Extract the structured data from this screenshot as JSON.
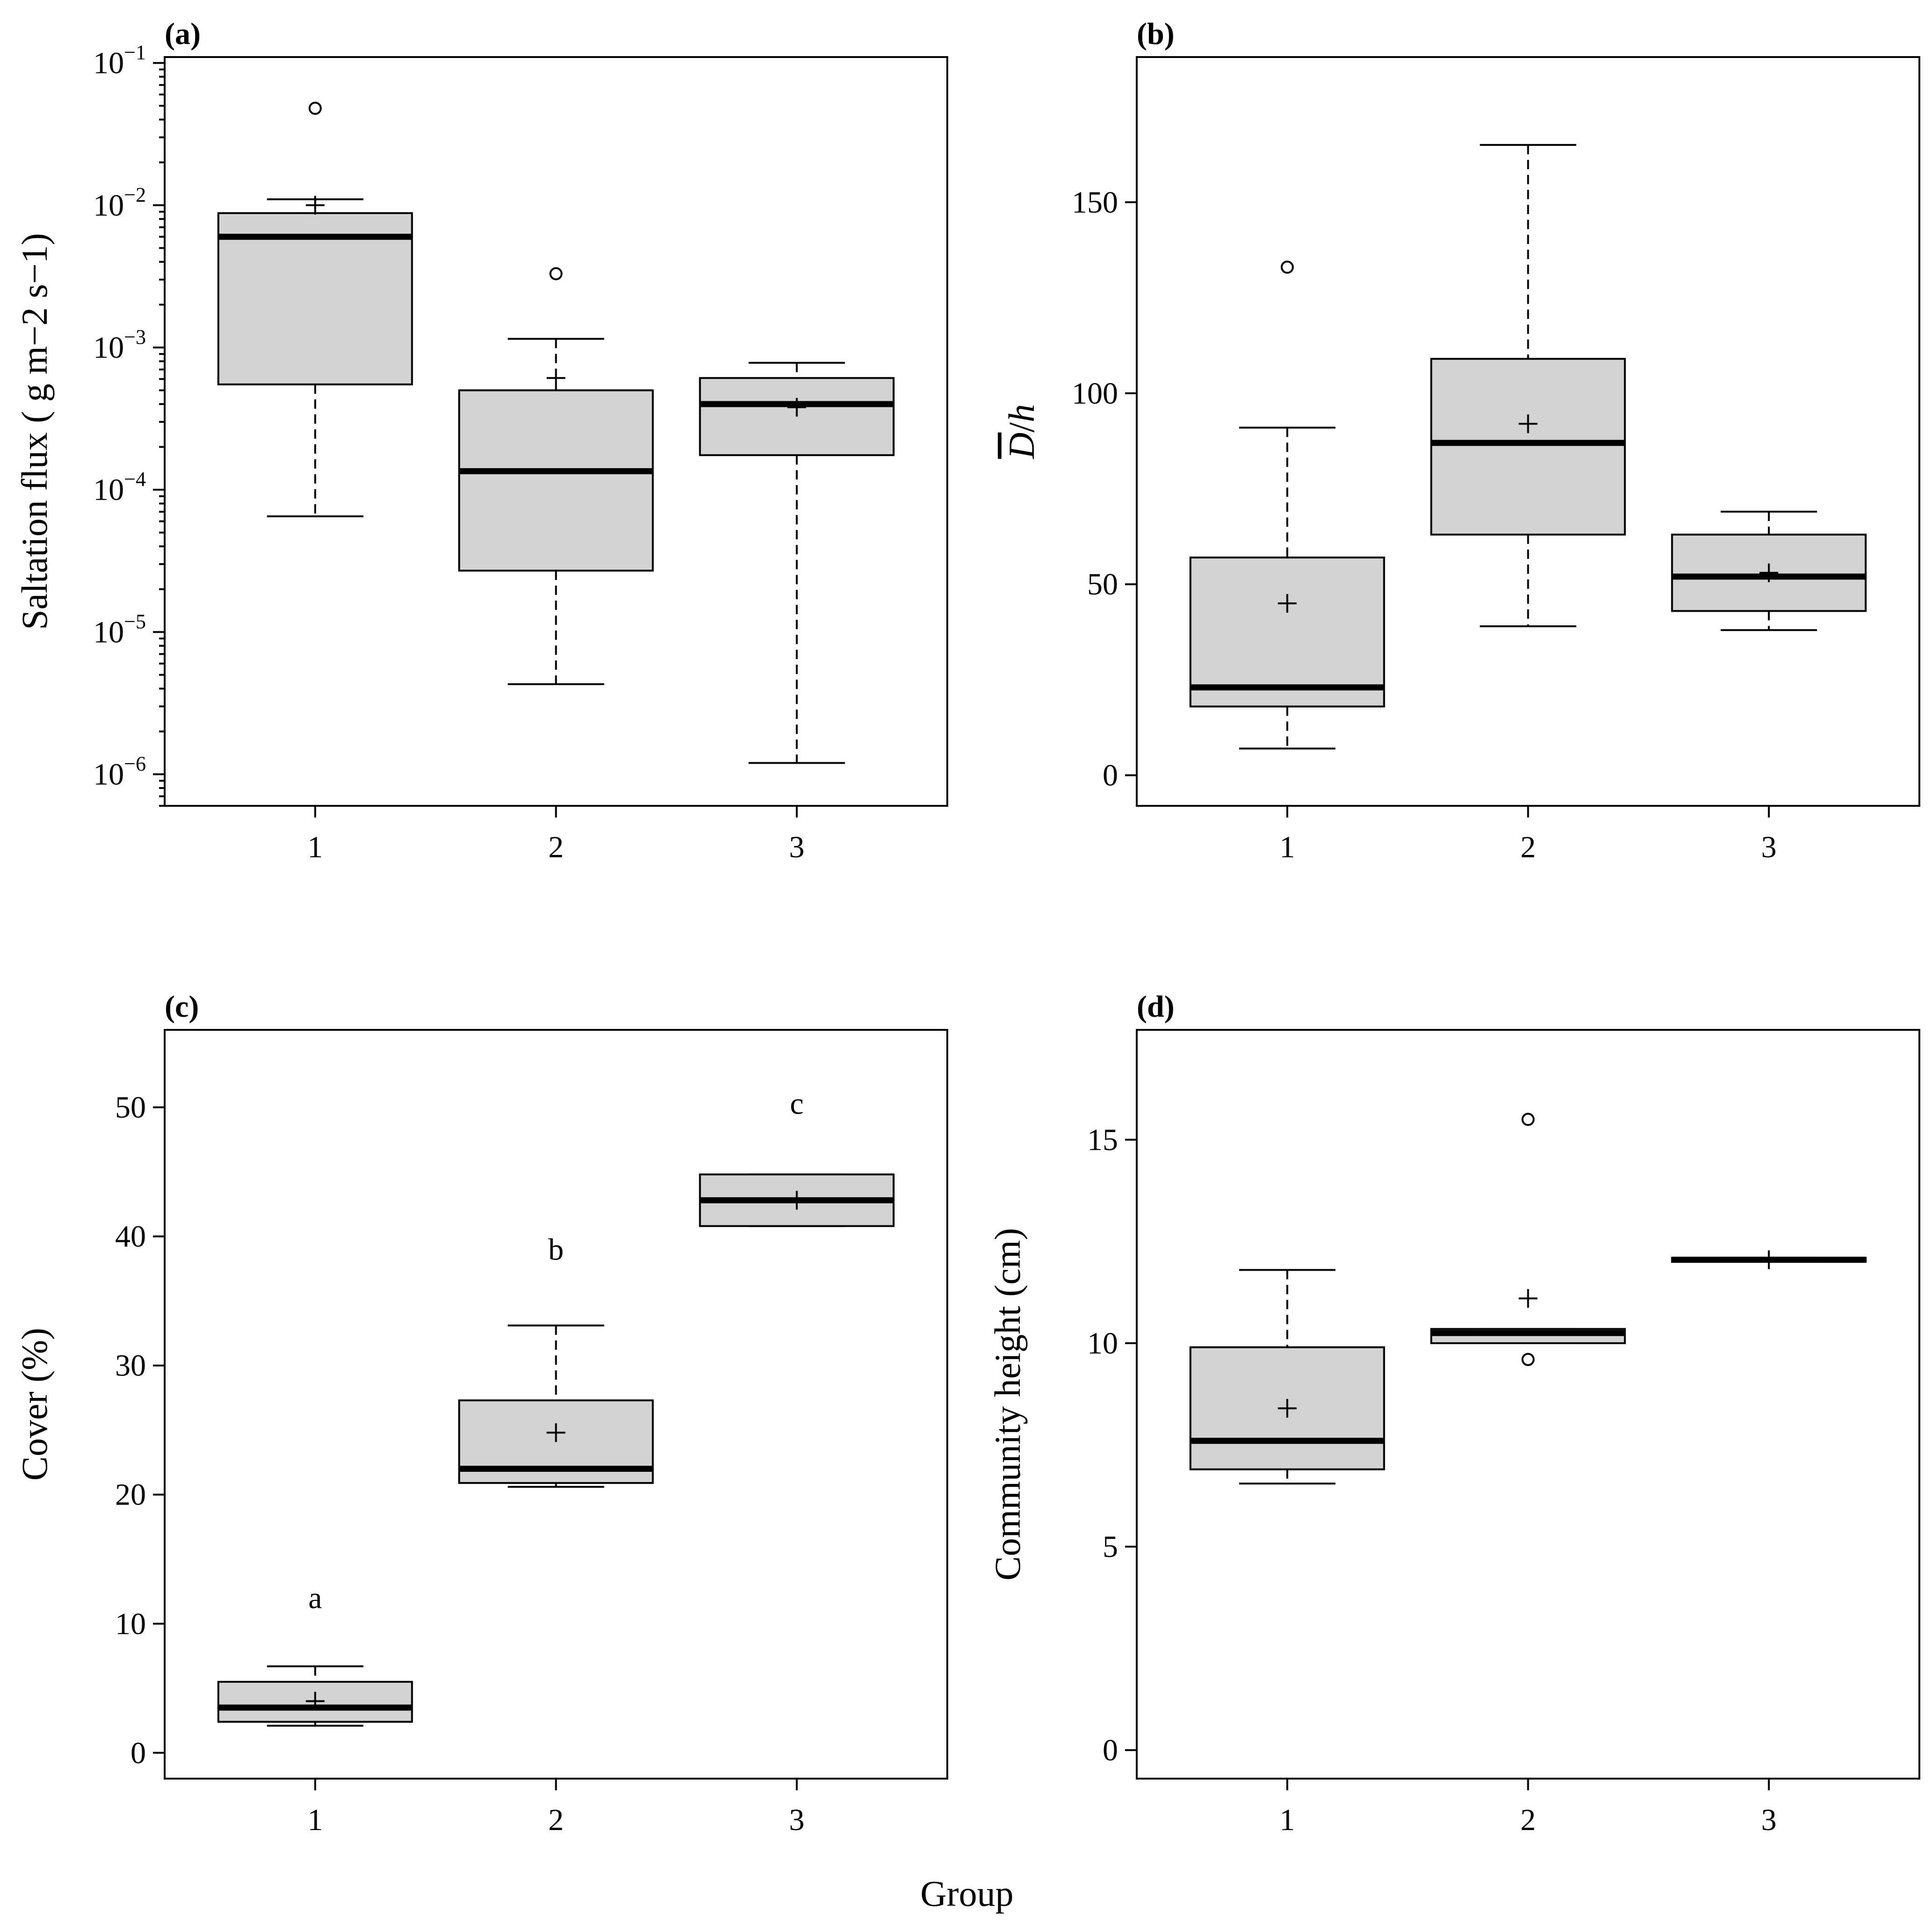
{
  "figure": {
    "x_common_label": "Group"
  },
  "chart_data": [
    {
      "panel": "(a)",
      "type": "box",
      "ylabel": "Saltation flux ( g m−2 s−1)",
      "yscale": "log",
      "ylim": [
        6e-07,
        0.11
      ],
      "categories": [
        "1",
        "2",
        "3"
      ],
      "ytick_labels": [
        {
          "value": 1e-06,
          "base": "10",
          "exp": "−6"
        },
        {
          "value": 1e-05,
          "base": "10",
          "exp": "−5"
        },
        {
          "value": 0.0001,
          "base": "10",
          "exp": "−4"
        },
        {
          "value": 0.001,
          "base": "10",
          "exp": "−3"
        },
        {
          "value": 0.01,
          "base": "10",
          "exp": "−2"
        },
        {
          "value": 0.1,
          "base": "10",
          "exp": "−1"
        }
      ],
      "boxes": [
        {
          "group": "1",
          "whisker_low": 6.5e-05,
          "q1": 0.00055,
          "median": 0.006,
          "q3": 0.0088,
          "whisker_high": 0.011,
          "mean": 0.01,
          "outliers": [
            0.048
          ]
        },
        {
          "group": "2",
          "whisker_low": 4.3e-06,
          "q1": 2.7e-05,
          "median": 0.000135,
          "q3": 0.0005,
          "whisker_high": 0.00115,
          "mean": 0.00061,
          "outliers": [
            0.0033
          ]
        },
        {
          "group": "3",
          "whisker_low": 1.2e-06,
          "q1": 0.000175,
          "median": 0.0004,
          "q3": 0.00061,
          "whisker_high": 0.00078,
          "mean": 0.00038,
          "outliers": []
        }
      ],
      "annotations": []
    },
    {
      "panel": "(b)",
      "type": "box",
      "ylabel": "D/h",
      "ylabel_parts": {
        "overbar_italic": "D",
        "slash": "/",
        "italic": "h"
      },
      "yscale": "linear",
      "ylim": [
        -8,
        188
      ],
      "categories": [
        "1",
        "2",
        "3"
      ],
      "ytick_labels": [
        {
          "value": 0,
          "label": "0"
        },
        {
          "value": 50,
          "label": "50"
        },
        {
          "value": 100,
          "label": "100"
        },
        {
          "value": 150,
          "label": "150"
        }
      ],
      "boxes": [
        {
          "group": "1",
          "whisker_low": 7,
          "q1": 18,
          "median": 23,
          "q3": 57,
          "whisker_high": 91,
          "mean": 45,
          "outliers": [
            133
          ]
        },
        {
          "group": "2",
          "whisker_low": 39,
          "q1": 63,
          "median": 87,
          "q3": 109,
          "whisker_high": 165,
          "mean": 92,
          "outliers": []
        },
        {
          "group": "3",
          "whisker_low": 38,
          "q1": 43,
          "median": 52,
          "q3": 63,
          "whisker_high": 69,
          "mean": 53,
          "outliers": []
        }
      ],
      "annotations": []
    },
    {
      "panel": "(c)",
      "type": "box",
      "ylabel": "Cover (%)",
      "yscale": "linear",
      "ylim": [
        -2,
        56
      ],
      "categories": [
        "1",
        "2",
        "3"
      ],
      "ytick_labels": [
        {
          "value": 0,
          "label": "0"
        },
        {
          "value": 10,
          "label": "10"
        },
        {
          "value": 20,
          "label": "20"
        },
        {
          "value": 30,
          "label": "30"
        },
        {
          "value": 40,
          "label": "40"
        },
        {
          "value": 50,
          "label": "50"
        }
      ],
      "boxes": [
        {
          "group": "1",
          "whisker_low": 2.1,
          "q1": 2.4,
          "median": 3.5,
          "q3": 5.5,
          "whisker_high": 6.7,
          "mean": 4.0,
          "outliers": []
        },
        {
          "group": "2",
          "whisker_low": 20.6,
          "q1": 20.9,
          "median": 22.0,
          "q3": 27.3,
          "whisker_high": 33.1,
          "mean": 24.8,
          "outliers": []
        },
        {
          "group": "3",
          "whisker_low": 40.8,
          "q1": 40.8,
          "median": 42.8,
          "q3": 44.8,
          "whisker_high": 44.8,
          "mean": 42.8,
          "outliers": []
        }
      ],
      "annotations": [
        {
          "group": "1",
          "value": 12,
          "text": "a"
        },
        {
          "group": "2",
          "value": 39,
          "text": "b"
        },
        {
          "group": "3",
          "value": 50.3,
          "text": "c"
        }
      ]
    },
    {
      "panel": "(d)",
      "type": "box",
      "ylabel": "Community height (cm)",
      "yscale": "linear",
      "ylim": [
        -0.7,
        17.7
      ],
      "categories": [
        "1",
        "2",
        "3"
      ],
      "ytick_labels": [
        {
          "value": 0,
          "label": "0"
        },
        {
          "value": 5,
          "label": "5"
        },
        {
          "value": 10,
          "label": "10"
        },
        {
          "value": 15,
          "label": "15"
        }
      ],
      "boxes": [
        {
          "group": "1",
          "whisker_low": 6.55,
          "q1": 6.9,
          "median": 7.6,
          "q3": 9.9,
          "whisker_high": 11.8,
          "mean": 8.4,
          "outliers": []
        },
        {
          "group": "2",
          "whisker_low": 10.0,
          "q1": 10.0,
          "median": 10.25,
          "q3": 10.35,
          "whisker_high": 10.35,
          "mean": 11.1,
          "outliers": [
            15.5,
            9.6
          ]
        },
        {
          "group": "3",
          "whisker_low": 12.0,
          "q1": 12.0,
          "median": 12.05,
          "q3": 12.1,
          "whisker_high": 12.1,
          "mean": 12.05,
          "outliers": []
        }
      ],
      "annotations": []
    }
  ]
}
